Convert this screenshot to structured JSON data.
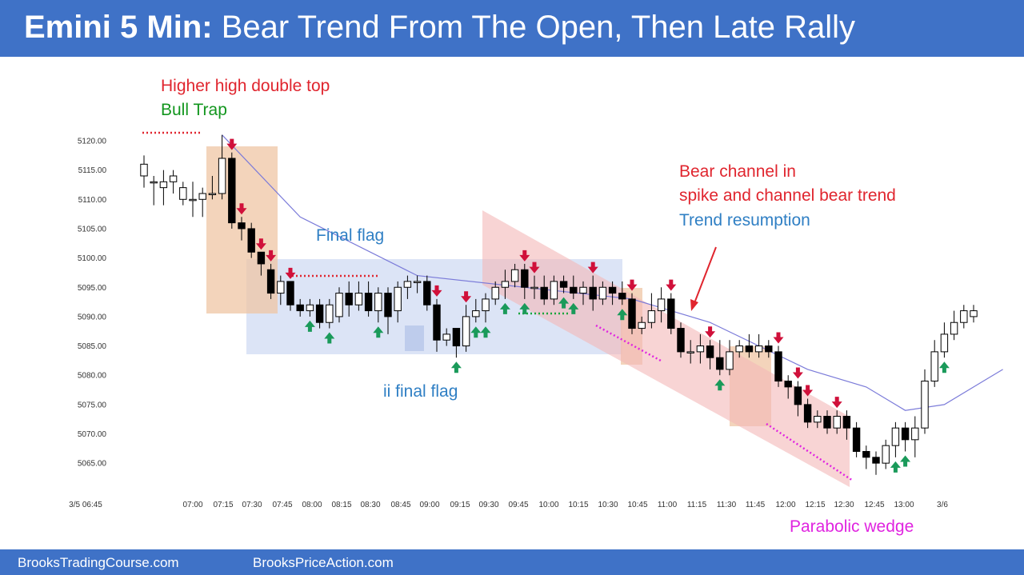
{
  "header": {
    "title_bold": "Emini 5 Min:",
    "title_rest": "Bear Trend From The Open, Then Late Rally",
    "background": "#3f72c7"
  },
  "footer": {
    "left": "BrooksTradingCourse.com",
    "right": "BrooksPriceAction.com"
  },
  "chart_data": {
    "type": "candlestick",
    "title": "Emini 5 Min: Bear Trend From The Open, Then Late Rally",
    "xlabel": "",
    "ylabel": "",
    "ylim": [
      5061,
      5123
    ],
    "y_ticks": [
      "5065.00",
      "5070.00",
      "5075.00",
      "5080.00",
      "5085.00",
      "5090.00",
      "5095.00",
      "5100.00",
      "5105.00",
      "5110.00",
      "5115.00",
      "5120.00"
    ],
    "x_ticks": [
      "3/5 06:45",
      "07:00",
      "07:15",
      "07:30",
      "07:45",
      "08:00",
      "08:15",
      "08:30",
      "08:45",
      "09:00",
      "09:15",
      "09:30",
      "09:45",
      "10:00",
      "10:15",
      "10:30",
      "10:45",
      "11:00",
      "11:15",
      "11:30",
      "11:45",
      "12:00",
      "12:15",
      "12:30",
      "12:45",
      "13:00",
      "3/6"
    ],
    "grid": false,
    "colors": {
      "bear_candle": "#000000",
      "bull_candle": "#ffffff",
      "ema": "#7b7bd9",
      "up_arrow": "#1a9a5a",
      "down_arrow": "#d0103a"
    },
    "candles": [
      [
        5114,
        5116,
        5117.5,
        5112
      ],
      [
        5113,
        5113,
        5114,
        5109
      ],
      [
        5112,
        5113,
        5115,
        5109
      ],
      [
        5113,
        5114,
        5115,
        5111
      ],
      [
        5110,
        5112,
        5113,
        5109
      ],
      [
        5110,
        5110,
        5113,
        5107
      ],
      [
        5110,
        5111,
        5112,
        5107
      ],
      [
        5111,
        5111,
        5114,
        5110
      ],
      [
        5111,
        5117,
        5121,
        5110
      ],
      [
        5117,
        5106,
        5118,
        5105
      ],
      [
        5106,
        5105,
        5107,
        5103
      ],
      [
        5105,
        5101,
        5106,
        5100
      ],
      [
        5101,
        5099,
        5101,
        5097
      ],
      [
        5098,
        5094,
        5099,
        5093
      ],
      [
        5094,
        5096,
        5097,
        5092
      ],
      [
        5096,
        5092,
        5096,
        5091
      ],
      [
        5092,
        5091,
        5093,
        5090
      ],
      [
        5091,
        5092,
        5093,
        5090
      ],
      [
        5092,
        5089,
        5093,
        5088
      ],
      [
        5089,
        5092,
        5093,
        5088
      ],
      [
        5090,
        5094,
        5095,
        5089
      ],
      [
        5094,
        5092,
        5096,
        5090
      ],
      [
        5092,
        5094,
        5096,
        5091
      ],
      [
        5094,
        5091,
        5096,
        5090
      ],
      [
        5091,
        5094,
        5095,
        5089
      ],
      [
        5094,
        5090,
        5095,
        5087
      ],
      [
        5091,
        5095,
        5096,
        5089
      ],
      [
        5095,
        5096,
        5097,
        5093
      ],
      [
        5096,
        5096,
        5097,
        5094
      ],
      [
        5096,
        5092,
        5097,
        5091
      ],
      [
        5092,
        5086,
        5093,
        5084
      ],
      [
        5086,
        5087,
        5088,
        5085
      ],
      [
        5088,
        5085,
        5088,
        5083
      ],
      [
        5085,
        5090,
        5092,
        5084
      ],
      [
        5090,
        5091,
        5093,
        5089
      ],
      [
        5091,
        5093,
        5094,
        5089
      ],
      [
        5093,
        5095,
        5096,
        5092
      ],
      [
        5095,
        5096,
        5098,
        5093
      ],
      [
        5096,
        5098,
        5099,
        5095
      ],
      [
        5098,
        5095,
        5099,
        5093
      ],
      [
        5095,
        5095,
        5097,
        5093
      ],
      [
        5095,
        5093,
        5097,
        5092
      ],
      [
        5093,
        5096,
        5097,
        5092
      ],
      [
        5096,
        5095,
        5097,
        5094
      ],
      [
        5095,
        5094,
        5097,
        5093
      ],
      [
        5094,
        5095,
        5096,
        5092
      ],
      [
        5095,
        5093,
        5097,
        5091
      ],
      [
        5093,
        5095,
        5096,
        5092
      ],
      [
        5095,
        5094,
        5096,
        5092
      ],
      [
        5094,
        5093,
        5096,
        5092
      ],
      [
        5093,
        5088,
        5094,
        5087
      ],
      [
        5088,
        5089,
        5090,
        5087
      ],
      [
        5089,
        5091,
        5094,
        5088
      ],
      [
        5091,
        5093,
        5095,
        5089
      ],
      [
        5093,
        5088,
        5094,
        5087
      ],
      [
        5088,
        5084,
        5089,
        5083
      ],
      [
        5084,
        5084,
        5086,
        5082
      ],
      [
        5084,
        5085,
        5087,
        5082
      ],
      [
        5085,
        5083,
        5086,
        5081
      ],
      [
        5083,
        5081,
        5086,
        5080
      ],
      [
        5081,
        5084,
        5086,
        5080
      ],
      [
        5084,
        5085,
        5086,
        5083
      ],
      [
        5085,
        5084,
        5087,
        5083
      ],
      [
        5084,
        5085,
        5087,
        5083
      ],
      [
        5085,
        5084,
        5086,
        5083
      ],
      [
        5084,
        5079,
        5085,
        5078
      ],
      [
        5079,
        5078,
        5080,
        5076
      ],
      [
        5078,
        5075,
        5079,
        5073
      ],
      [
        5075,
        5072,
        5076,
        5071
      ],
      [
        5072,
        5073,
        5074,
        5071
      ],
      [
        5073,
        5071,
        5074,
        5070
      ],
      [
        5071,
        5073,
        5074,
        5070
      ],
      [
        5073,
        5071,
        5074,
        5069
      ],
      [
        5071,
        5067,
        5072,
        5066
      ],
      [
        5067,
        5066,
        5068,
        5064
      ],
      [
        5066,
        5065,
        5067,
        5063
      ],
      [
        5065,
        5068,
        5069,
        5064
      ],
      [
        5068,
        5071,
        5072,
        5066
      ],
      [
        5071,
        5069,
        5072,
        5067
      ],
      [
        5069,
        5071,
        5073,
        5066
      ],
      [
        5071,
        5079,
        5081,
        5070
      ],
      [
        5079,
        5084,
        5086,
        5078
      ],
      [
        5084,
        5087,
        5089,
        5083
      ],
      [
        5087,
        5089,
        5091,
        5086
      ],
      [
        5089,
        5091,
        5092,
        5088
      ],
      [
        5090,
        5091,
        5092,
        5089
      ]
    ],
    "ema": [
      [
        8,
        5121
      ],
      [
        16,
        5107
      ],
      [
        28,
        5097
      ],
      [
        50,
        5093
      ],
      [
        58,
        5089
      ],
      [
        68,
        5081
      ],
      [
        74,
        5078
      ],
      [
        78,
        5074
      ],
      [
        82,
        5075
      ],
      [
        86,
        5079
      ],
      [
        88,
        5081
      ]
    ],
    "annotations": {
      "higher_high": "Higher high double top",
      "bull_trap": "Bull Trap",
      "final_flag": "Final flag",
      "ii_final_flag": "ii final flag",
      "bear_channel_1": "Bear channel in",
      "bear_channel_2": "spike and channel bear trend",
      "trend_resumption": "Trend resumption",
      "parabolic_wedge": "Parabolic wedge"
    },
    "down_arrow_bars": [
      9,
      10,
      12,
      13,
      15,
      30,
      33,
      39,
      40,
      46,
      50,
      54,
      58,
      65,
      67,
      68,
      71
    ],
    "up_arrow_bars": [
      17,
      19,
      24,
      32,
      34,
      35,
      37,
      39,
      43,
      44,
      49,
      59,
      77,
      78,
      82
    ]
  }
}
